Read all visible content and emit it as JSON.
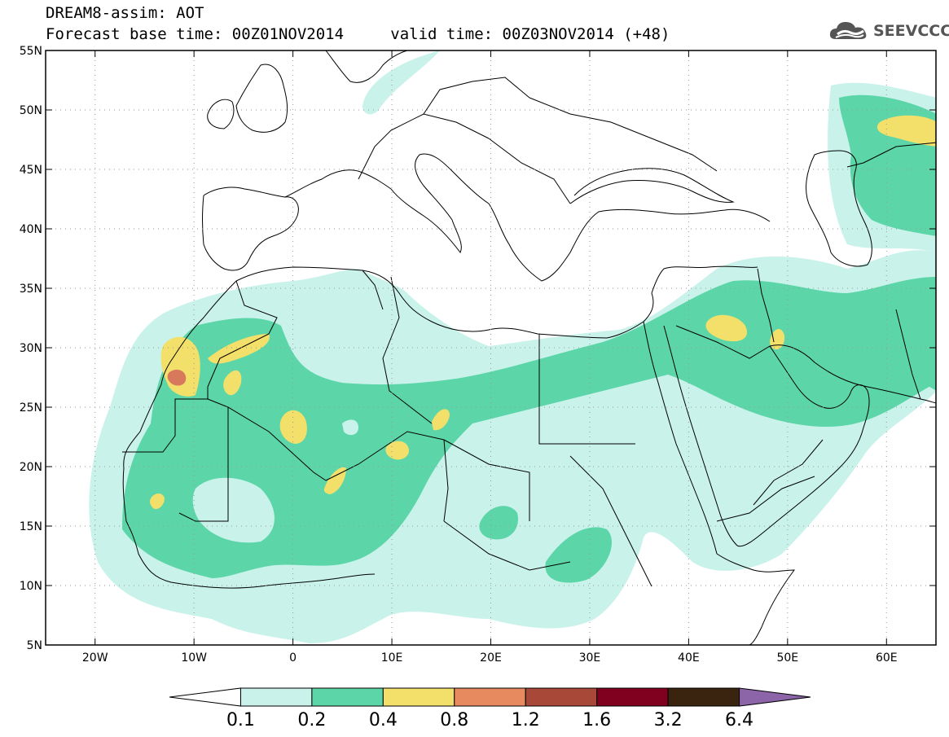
{
  "header": {
    "title": "DREAM8-assim: AOT",
    "base_time_label": "Forecast base time: 00Z01NOV2014",
    "valid_time_label": "valid time: 00Z03NOV2014 (+48)"
  },
  "logo": {
    "text": "SEEVCCC",
    "icon": "cloud-icon"
  },
  "axes": {
    "lon_range": [
      -25,
      65
    ],
    "lat_range": [
      5,
      55
    ],
    "x_ticks": [
      {
        "lon": -20,
        "label": "20W"
      },
      {
        "lon": -10,
        "label": "10W"
      },
      {
        "lon": 0,
        "label": "0"
      },
      {
        "lon": 10,
        "label": "10E"
      },
      {
        "lon": 20,
        "label": "20E"
      },
      {
        "lon": 30,
        "label": "30E"
      },
      {
        "lon": 40,
        "label": "40E"
      },
      {
        "lon": 50,
        "label": "50E"
      },
      {
        "lon": 60,
        "label": "60E"
      }
    ],
    "y_ticks": [
      {
        "lat": 55,
        "label": "55N"
      },
      {
        "lat": 50,
        "label": "50N"
      },
      {
        "lat": 45,
        "label": "45N"
      },
      {
        "lat": 40,
        "label": "40N"
      },
      {
        "lat": 35,
        "label": "35N"
      },
      {
        "lat": 30,
        "label": "30N"
      },
      {
        "lat": 25,
        "label": "25N"
      },
      {
        "lat": 20,
        "label": "20N"
      },
      {
        "lat": 15,
        "label": "15N"
      },
      {
        "lat": 10,
        "label": "10N"
      },
      {
        "lat": 5,
        "label": "5N"
      }
    ],
    "grid": "dotted"
  },
  "colorbar": {
    "levels": [
      "0.1",
      "0.2",
      "0.4",
      "0.8",
      "1.2",
      "1.6",
      "3.2",
      "6.4"
    ],
    "colors": [
      "#ffffff",
      "#c8f2ea",
      "#5cd6a8",
      "#f2e06a",
      "#e88a60",
      "#a84838",
      "#800020",
      "#3a2410",
      "#8c64a8"
    ]
  },
  "colors": {
    "c01": "#c8f2ea",
    "c02": "#5cd6a8",
    "c04": "#f2e06a",
    "c08": "#e88a60",
    "c12": "#a84838"
  }
}
